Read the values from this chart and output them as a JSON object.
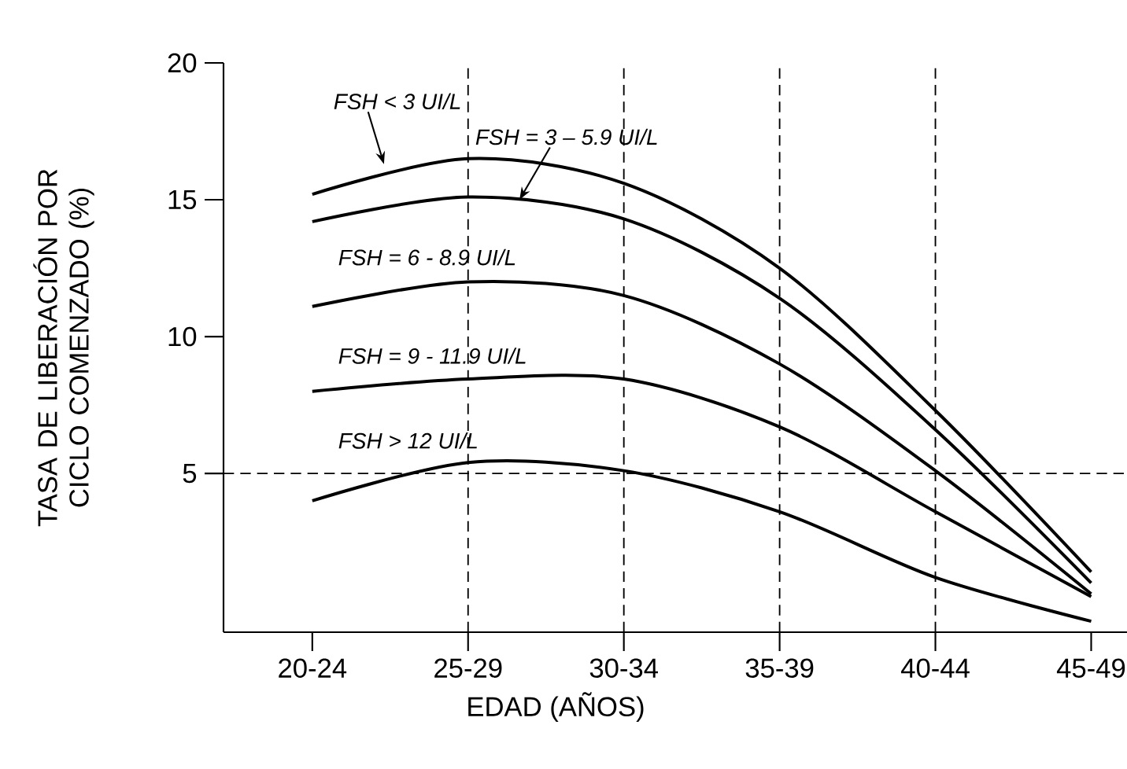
{
  "chart_data": {
    "type": "line",
    "xlabel": "EDAD (AÑOS)",
    "ylabel": "TASA DE LIBERACIÓN POR CICLO COMENZADO (%)",
    "categories": [
      "20-24",
      "25-29",
      "30-34",
      "35-39",
      "40-44",
      "45-49"
    ],
    "ylim": [
      -0.8,
      20
    ],
    "yticks": [
      5,
      10,
      15,
      20
    ],
    "marker": "none",
    "line_style": "solid",
    "series": [
      {
        "name": "FSH < 3 UI/L",
        "color": "#000000",
        "values": [
          15.2,
          16.5,
          15.6,
          12.5,
          7.3,
          1.4
        ]
      },
      {
        "name": "FSH = 3 – 5.9 UI/L",
        "color": "#000000",
        "values": [
          14.2,
          15.1,
          14.3,
          11.4,
          6.6,
          1.0
        ]
      },
      {
        "name": "FSH = 6 - 8.9 UI/L",
        "color": "#000000",
        "values": [
          11.1,
          12.0,
          11.5,
          9.0,
          5.1,
          0.6
        ]
      },
      {
        "name": "FSH = 9 - 11.9 UI/L",
        "color": "#000000",
        "values": [
          8.0,
          8.45,
          8.45,
          6.7,
          3.6,
          0.5
        ]
      },
      {
        "name": "FSH > 12 UI/L",
        "color": "#000000",
        "values": [
          4.0,
          5.4,
          5.1,
          3.6,
          1.2,
          -0.4
        ]
      }
    ],
    "ref_lines": [
      {
        "axis": "x",
        "value": "25-29",
        "color": "#000000",
        "line_style": "dashed"
      },
      {
        "axis": "x",
        "value": "30-34",
        "color": "#000000",
        "line_style": "dashed"
      },
      {
        "axis": "x",
        "value": "35-39",
        "color": "#000000",
        "line_style": "dashed"
      },
      {
        "axis": "x",
        "value": "40-44",
        "color": "#000000",
        "line_style": "dashed"
      },
      {
        "axis": "y",
        "value": 5,
        "color": "#000000",
        "line_style": "dashed"
      }
    ]
  }
}
